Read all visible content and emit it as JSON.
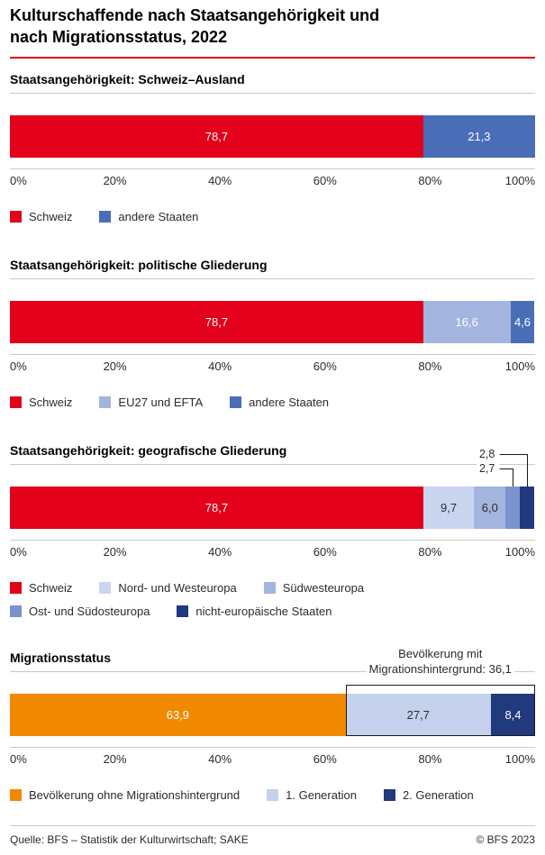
{
  "page": {
    "title_line1": "Kulturschaffende nach Staatsangehörigkeit und",
    "title_line2": "nach Migrationsstatus, 2022",
    "footer_source": "Quelle: BFS – Statistik der Kulturwirtschaft; SAKE",
    "footer_copyright": "© BFS 2023"
  },
  "colors": {
    "accent_red": "#e2001a",
    "rule_gray": "#c9c9c9",
    "orange": "#f18a00",
    "navy": "#21397d"
  },
  "axis": {
    "tick_positions": [
      0,
      20,
      40,
      60,
      80,
      100
    ],
    "tick_labels": [
      "0%",
      "20%",
      "40%",
      "60%",
      "80%",
      "100%"
    ]
  },
  "chart_data": [
    {
      "type": "bar",
      "stacked": true,
      "orientation": "horizontal",
      "section_title": "Staatsangehörigkeit: Schweiz–Ausland",
      "xlim": [
        0,
        100
      ],
      "unit": "%",
      "segments": [
        {
          "label": "Schweiz",
          "value": 78.7,
          "value_label": "78,7",
          "color": "#e2001a",
          "label_style": "light"
        },
        {
          "label": "andere Staaten",
          "value": 21.3,
          "value_label": "21,3",
          "color": "#4a6db8",
          "label_style": "light"
        }
      ],
      "legend_rows": [
        [
          0,
          1
        ]
      ]
    },
    {
      "type": "bar",
      "stacked": true,
      "orientation": "horizontal",
      "section_title": "Staatsangehörigkeit: politische Gliederung",
      "xlim": [
        0,
        100
      ],
      "unit": "%",
      "segments": [
        {
          "label": "Schweiz",
          "value": 78.7,
          "value_label": "78,7",
          "color": "#e2001a",
          "label_style": "light"
        },
        {
          "label": "EU27 und EFTA",
          "value": 16.6,
          "value_label": "16,6",
          "color": "#a3b4de",
          "label_style": "light"
        },
        {
          "label": "andere Staaten",
          "value": 4.6,
          "value_label": "4,6",
          "color": "#4a6db8",
          "label_style": "light"
        }
      ],
      "legend_rows": [
        [
          0,
          1,
          2
        ]
      ]
    },
    {
      "type": "bar",
      "stacked": true,
      "orientation": "horizontal",
      "section_title": "Staatsangehörigkeit: geografische Gliederung",
      "xlim": [
        0,
        100
      ],
      "unit": "%",
      "segments": [
        {
          "label": "Schweiz",
          "value": 78.7,
          "value_label": "78,7",
          "color": "#e2001a",
          "label_style": "light"
        },
        {
          "label": "Nord- und Westeuropa",
          "value": 9.7,
          "value_label": "9,7",
          "color": "#cad5f0",
          "label_style": "dark"
        },
        {
          "label": "Südwesteuropa",
          "value": 6.0,
          "value_label": "6,0",
          "color": "#a3b4de",
          "label_style": "dark"
        },
        {
          "label": "Ost- und Südosteuropa",
          "value": 2.7,
          "value_label": "2,7",
          "color": "#7b92cf",
          "label_style": "callout",
          "callout_level": 1
        },
        {
          "label": "nicht-europäische Staaten",
          "value": 2.8,
          "value_label": "2,8",
          "color": "#21397d",
          "label_style": "callout",
          "callout_level": 2
        }
      ],
      "legend_rows": [
        [
          0,
          1,
          2
        ],
        [
          3,
          4
        ]
      ]
    },
    {
      "type": "bar",
      "stacked": true,
      "orientation": "horizontal",
      "section_title": "Migrationsstatus",
      "xlim": [
        0,
        100
      ],
      "unit": "%",
      "segments": [
        {
          "label": "Bevölkerung ohne Migrationshintergrund",
          "value": 63.9,
          "value_label": "63,9",
          "color": "#f18a00",
          "label_style": "light"
        },
        {
          "label": "1. Generation",
          "value": 27.7,
          "value_label": "27,7",
          "color": "#c4d0ec",
          "label_style": "dark"
        },
        {
          "label": "2. Generation",
          "value": 8.4,
          "value_label": "8,4",
          "color": "#21397d",
          "label_style": "light"
        }
      ],
      "legend_rows": [
        [
          0,
          1,
          2
        ]
      ],
      "annotation": {
        "line1": "Bevölkerung mit",
        "line2": "Migrationshintergrund: 36,1",
        "span": [
          63.9,
          100
        ]
      }
    }
  ]
}
